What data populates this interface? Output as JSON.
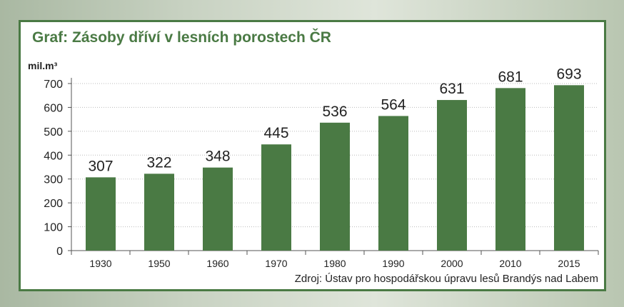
{
  "colors": {
    "bar": "#4a7a44",
    "frame": "#4a7a44",
    "title": "#4a7a44",
    "grid": "#bbbbbb",
    "text": "#222222"
  },
  "chart_data": {
    "type": "bar",
    "title": "Graf: Zásoby dříví v lesních porostech ČR",
    "ylabel": "mil.m³",
    "xlabel": "",
    "categories": [
      "1930",
      "1950",
      "1960",
      "1970",
      "1980",
      "1990",
      "2000",
      "2010",
      "2015"
    ],
    "values": [
      307,
      322,
      348,
      445,
      536,
      564,
      631,
      681,
      693
    ],
    "data_labels": [
      "307",
      "322",
      "348",
      "445",
      "536",
      "564",
      "631",
      "681",
      "693"
    ],
    "ylim": [
      0,
      700
    ],
    "yticks": [
      "0",
      "100",
      "200",
      "300",
      "400",
      "500",
      "600",
      "700"
    ],
    "grid": true,
    "source": "Zdroj: Ústav pro hospodářskou úpravu lesů Brandýs nad Labem"
  }
}
